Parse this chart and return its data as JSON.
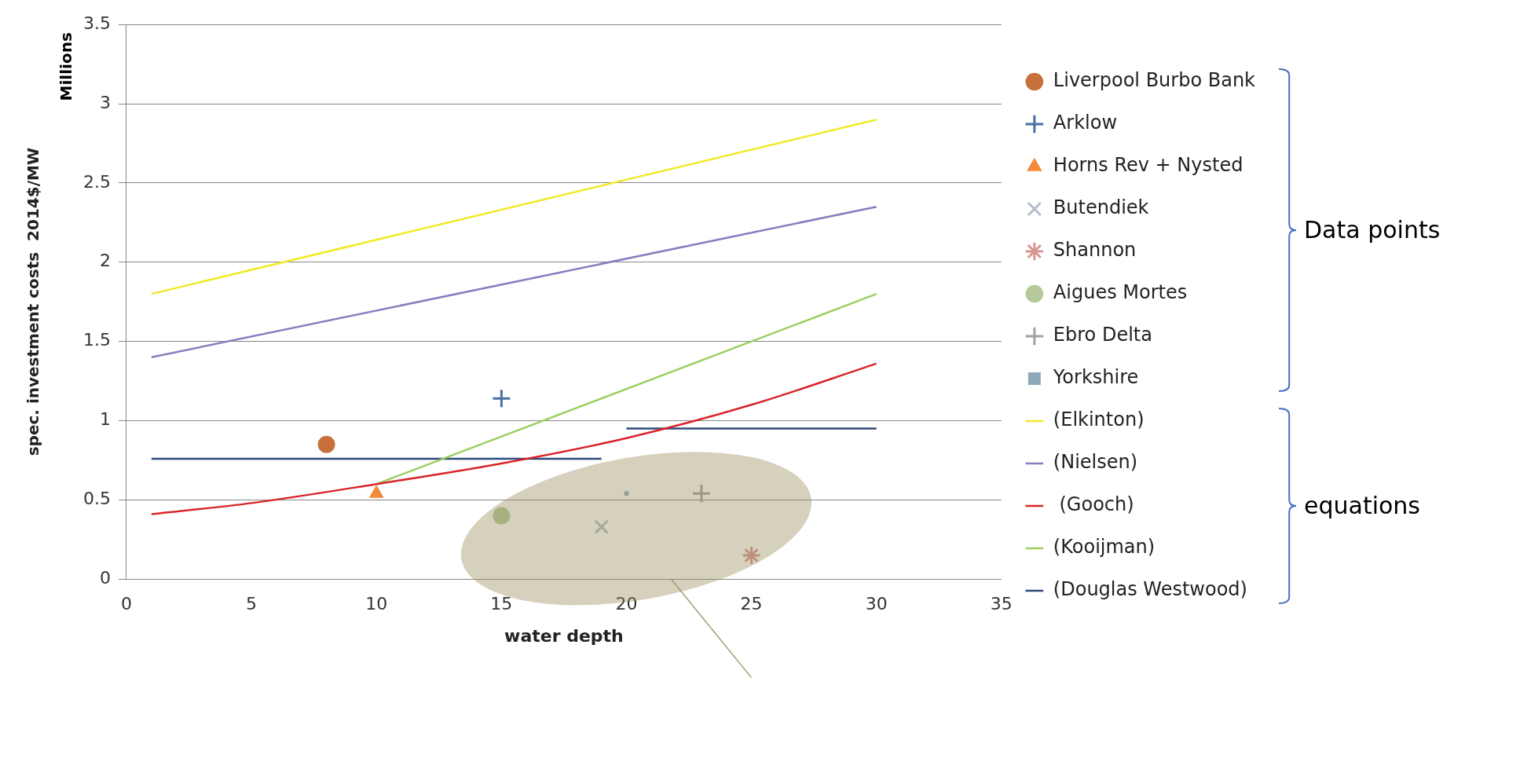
{
  "chart_data": {
    "type": "scatter",
    "xlabel": "water depth",
    "ylabel": "spec. investment costs  2014$/MW",
    "annotations": [
      "Millions",
      "Data points",
      "equations"
    ],
    "xlim": [
      0,
      35
    ],
    "xticks": [
      0,
      5,
      10,
      15,
      20,
      25,
      30,
      35
    ],
    "ylim": [
      0,
      3.5
    ],
    "yticks": [
      0,
      0.5,
      1,
      1.5,
      2,
      2.5,
      3,
      3.5
    ],
    "grid": "y",
    "legend": "right",
    "series": [
      {
        "name": "Liverpool Burbo Bank",
        "color": "#c8703a",
        "marker": "circle",
        "x": [
          8
        ],
        "values": [
          0.85
        ]
      },
      {
        "name": "Arklow",
        "color": "#4a6fa5",
        "marker": "cross",
        "x": [
          15
        ],
        "values": [
          1.14
        ]
      },
      {
        "name": "Horns Rev + Nysted",
        "color": "#f28a3c",
        "marker": "triangle",
        "x": [
          10
        ],
        "values": [
          0.54
        ]
      },
      {
        "name": "Butendiek",
        "color": "#b4bccc",
        "marker": "x",
        "x": [
          19
        ],
        "values": [
          0.33
        ]
      },
      {
        "name": "Shannon",
        "color": "#d99590",
        "x": [
          25
        ],
        "values": [
          0.15
        ]
      },
      {
        "name": "Aigues Mortes",
        "color": "#b5c99a",
        "marker": "circle",
        "x": [
          15
        ],
        "values": [
          0.4
        ]
      },
      {
        "name": "Ebro Delta",
        "color": "#a0a0a0",
        "marker": "cross",
        "x": [
          23
        ],
        "values": [
          0.54
        ]
      },
      {
        "name": "Yorkshire",
        "color": "#8fa8b8",
        "marker": "square",
        "x": [
          20
        ],
        "values": [
          0.54
        ]
      },
      {
        "name": "(Elkinton)",
        "type": "line",
        "color": "#f0ea2a",
        "marker": "none",
        "x": [
          1,
          30
        ],
        "values": [
          1.8,
          2.9
        ]
      },
      {
        "name": "(Nielsen)",
        "type": "line",
        "color": "#8a7cc0",
        "marker": "none",
        "x": [
          1,
          30
        ],
        "values": [
          1.4,
          2.35
        ]
      },
      {
        "name": " (Gooch)",
        "type": "line",
        "color": "#d9252a",
        "marker": "none",
        "x": [
          1,
          5,
          10,
          15,
          20,
          25,
          30
        ],
        "values": [
          0.41,
          0.48,
          0.6,
          0.73,
          0.89,
          1.1,
          1.36
        ]
      },
      {
        "name": "(Kooijman)",
        "type": "line",
        "color": "#9bcf5f",
        "marker": "none",
        "x": [
          10,
          30
        ],
        "values": [
          0.6,
          1.8
        ]
      },
      {
        "name": "(Douglas Westwood)",
        "type": "line",
        "color": "#2f4a7a",
        "marker": "none",
        "x": [
          1,
          19,
          19.5,
          20,
          30
        ],
        "values": [
          0.76,
          0.76,
          null,
          0.95,
          0.95
        ]
      }
    ]
  }
}
